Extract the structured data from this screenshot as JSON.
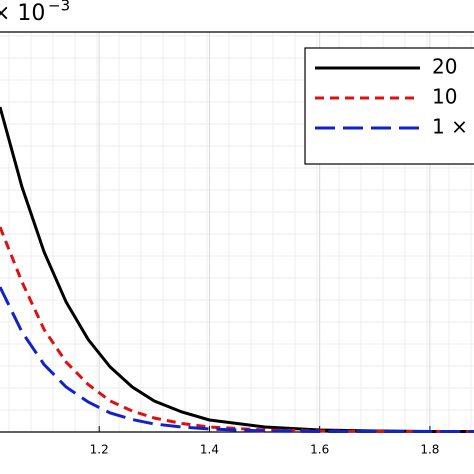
{
  "chart_data": {
    "type": "line",
    "title": "× 10",
    "title_exponent": "−3",
    "x": [
      1.02,
      1.06,
      1.1,
      1.14,
      1.18,
      1.22,
      1.26,
      1.3,
      1.35,
      1.4,
      1.5,
      1.6,
      1.7,
      1.8,
      1.88
    ],
    "series": [
      {
        "name": "20",
        "color": "#000000",
        "dash": "solid",
        "values": [
          6.5,
          4.9,
          3.6,
          2.6,
          1.85,
          1.3,
          0.9,
          0.62,
          0.4,
          0.24,
          0.1,
          0.04,
          0.02,
          0.01,
          0.01
        ]
      },
      {
        "name": "10",
        "color": "#dd1111",
        "dash": "short",
        "values": [
          4.1,
          3.0,
          2.05,
          1.4,
          0.95,
          0.62,
          0.42,
          0.28,
          0.17,
          0.1,
          0.04,
          0.02,
          0.01,
          0.01,
          0.01
        ]
      },
      {
        "name": "1 ×",
        "color": "#1122cc",
        "dash": "long",
        "values": [
          2.9,
          2.0,
          1.35,
          0.9,
          0.6,
          0.38,
          0.25,
          0.16,
          0.1,
          0.06,
          0.02,
          0.01,
          0.01,
          0.01,
          0.01
        ]
      }
    ],
    "xlim": [
      1.02,
      1.88
    ],
    "ylim": [
      0,
      8
    ],
    "xticks": [
      1.2,
      1.4,
      1.6,
      1.8
    ],
    "grid": true,
    "legend": "upper right"
  }
}
